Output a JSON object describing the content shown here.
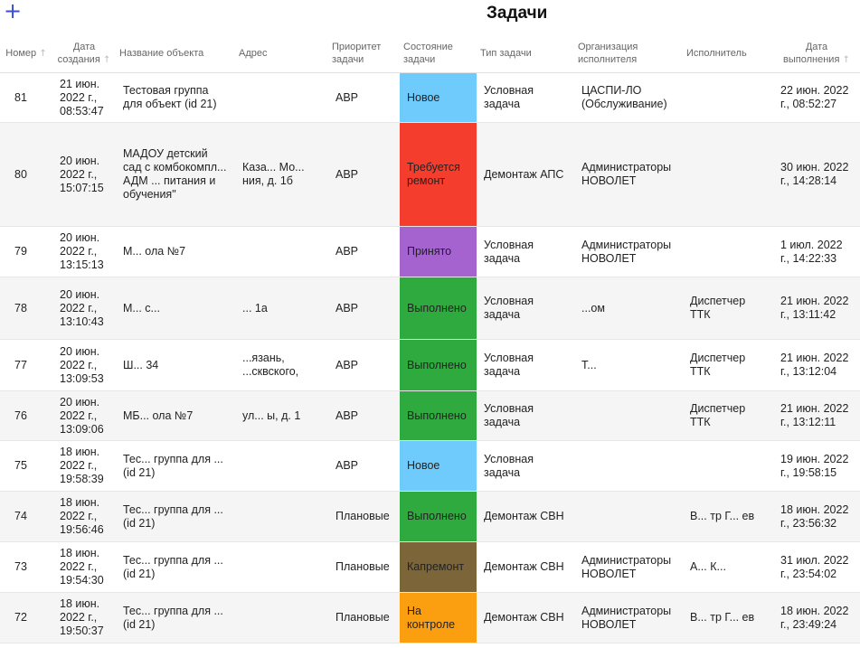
{
  "header": {
    "title": "Задачи",
    "add_icon": "+"
  },
  "columns": [
    {
      "label": "Номер",
      "sortable": true
    },
    {
      "label": "Дата создания",
      "sortable": true
    },
    {
      "label": "Название объекта",
      "sortable": false
    },
    {
      "label": "Адрес",
      "sortable": false
    },
    {
      "label": "Приоритет задачи",
      "sortable": false
    },
    {
      "label": "Состояние задачи",
      "sortable": false
    },
    {
      "label": "Тип задачи",
      "sortable": false
    },
    {
      "label": "Организация исполнителя",
      "sortable": false
    },
    {
      "label": "Исполнитель",
      "sortable": false
    },
    {
      "label": "Дата выполнения",
      "sortable": true
    }
  ],
  "colors": {
    "Новое": "#6ecbfb",
    "Требуется ремонт": "#f53d2d",
    "Принято": "#a463cf",
    "Выполнено": "#2faa3e",
    "Капремонт": "#7c6538",
    "На контроле": "#fb9e10",
    "accent": "#3a4fd6"
  },
  "rows": [
    {
      "num": "81",
      "created": "21 июн. 2022 г., 08:53:47",
      "object": "Тестовая группа для объект (id 21)",
      "address": "",
      "priority": "АВР",
      "state": "Новое",
      "type": "Условная задача",
      "org": "ЦАСПИ-ЛО (Обслуживание)",
      "executor": "",
      "done": "22 июн. 2022 г., 08:52:27"
    },
    {
      "num": "80",
      "created": "20 июн. 2022 г., 15:07:15",
      "object": "МАДОУ детский сад с комбокомпл... АДМ ... питания и обучения\"",
      "address": "Каза... Мо... ния, д. 1б",
      "priority": "АВР",
      "state": "Требуется ремонт",
      "type": "Демонтаж АПС",
      "org": "Администраторы НОВОЛЕТ",
      "executor": "",
      "done": "30 июн. 2022 г., 14:28:14"
    },
    {
      "num": "79",
      "created": "20 июн. 2022 г., 13:15:13",
      "object": "М... ола №7",
      "address": "",
      "priority": "АВР",
      "state": "Принято",
      "type": "Условная задача",
      "org": "Администраторы НОВОЛЕТ",
      "executor": "",
      "done": "1 июл. 2022 г., 14:22:33"
    },
    {
      "num": "78",
      "created": "20 июн. 2022 г., 13:10:43",
      "object": "М... с...",
      "address": "... 1а",
      "priority": "АВР",
      "state": "Выполнено",
      "type": "Условная задача",
      "org": "...ом",
      "executor": "Диспетчер ТТК",
      "done": "21 июн. 2022 г., 13:11:42"
    },
    {
      "num": "77",
      "created": "20 июн. 2022 г., 13:09:53",
      "object": "Ш... 34",
      "address": "...язань, ...сквского,",
      "priority": "АВР",
      "state": "Выполнено",
      "type": "Условная задача",
      "org": "Т...",
      "executor": "Диспетчер ТТК",
      "done": "21 июн. 2022 г., 13:12:04"
    },
    {
      "num": "76",
      "created": "20 июн. 2022 г., 13:09:06",
      "object": "МБ... ола №7",
      "address": "ул... ы, д. 1",
      "priority": "АВР",
      "state": "Выполнено",
      "type": "Условная задача",
      "org": "",
      "executor": "Диспетчер ТТК",
      "done": "21 июн. 2022 г., 13:12:11"
    },
    {
      "num": "75",
      "created": "18 июн. 2022 г., 19:58:39",
      "object": "Тес... группа для ... (id 21)",
      "address": "",
      "priority": "АВР",
      "state": "Новое",
      "type": "Условная задача",
      "org": "",
      "executor": "",
      "done": "19 июн. 2022 г., 19:58:15"
    },
    {
      "num": "74",
      "created": "18 июн. 2022 г., 19:56:46",
      "object": "Тес... группа для ... (id 21)",
      "address": "",
      "priority": "Плановые",
      "state": "Выполнено",
      "type": "Демонтаж СВН",
      "org": "",
      "executor": "В... тр Г... ев",
      "done": "18 июн. 2022 г., 23:56:32"
    },
    {
      "num": "73",
      "created": "18 июн. 2022 г., 19:54:30",
      "object": "Тес... группа для ... (id 21)",
      "address": "",
      "priority": "Плановые",
      "state": "Капремонт",
      "type": "Демонтаж СВН",
      "org": "Администраторы НОВОЛЕТ",
      "executor": "А... К...",
      "done": "31 июл. 2022 г., 23:54:02"
    },
    {
      "num": "72",
      "created": "18 июн. 2022 г., 19:50:37",
      "object": "Тес... группа для ... (id 21)",
      "address": "",
      "priority": "Плановые",
      "state": "На контроле",
      "type": "Демонтаж СВН",
      "org": "Администраторы НОВОЛЕТ",
      "executor": "В... тр Г... ев",
      "done": "18 июн. 2022 г., 23:49:24"
    }
  ]
}
